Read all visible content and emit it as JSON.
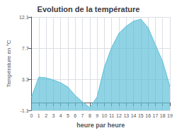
{
  "chart_data": {
    "type": "area",
    "title": "Evolution de la température",
    "xlabel": "heure par heure",
    "ylabel": "Température en °C",
    "x": [
      0,
      1,
      2,
      3,
      4,
      5,
      6,
      7,
      8,
      9,
      10,
      11,
      12,
      13,
      14,
      15,
      16,
      17,
      18,
      19
    ],
    "values": [
      0.8,
      3.6,
      3.5,
      3.2,
      2.8,
      2.2,
      1.0,
      0.1,
      -0.7,
      0.8,
      5.0,
      7.8,
      9.8,
      10.8,
      11.5,
      11.8,
      10.6,
      8.2,
      5.8,
      2.3
    ],
    "color": "#60c0d8",
    "xlim": [
      0,
      19
    ],
    "xticks": [
      0,
      1,
      2,
      3,
      4,
      5,
      6,
      7,
      8,
      9,
      10,
      11,
      12,
      13,
      14,
      15,
      16,
      17,
      18,
      19
    ],
    "ylim": [
      -1.1,
      12.1
    ],
    "yticks": [
      -1.1,
      3.3,
      7.7,
      12.1
    ],
    "grid": true
  }
}
